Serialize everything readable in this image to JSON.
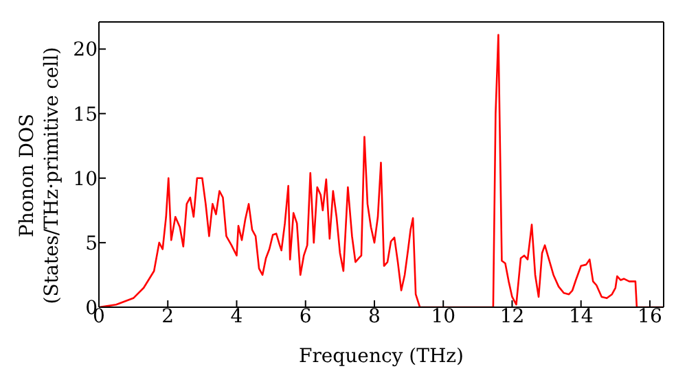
{
  "chart_data": {
    "type": "line",
    "xlabel": "Frequency (THz)",
    "ylabel": "Phonon DOS\n(States/THz·primitive cell)",
    "xlim": [
      0,
      16.4
    ],
    "ylim": [
      0,
      22.1
    ],
    "xticks": [
      0,
      2,
      4,
      6,
      8,
      10,
      12,
      14,
      16
    ],
    "yticks": [
      0,
      5,
      10,
      15,
      20
    ],
    "marker": "none",
    "line_style": "solid",
    "x": [
      0,
      0.5,
      1.0,
      1.3,
      1.6,
      1.75,
      1.85,
      1.95,
      2.02,
      2.1,
      2.22,
      2.35,
      2.45,
      2.55,
      2.65,
      2.75,
      2.85,
      3.0,
      3.1,
      3.2,
      3.3,
      3.4,
      3.5,
      3.6,
      3.7,
      3.85,
      4.0,
      4.05,
      4.15,
      4.25,
      4.35,
      4.45,
      4.55,
      4.65,
      4.75,
      4.85,
      4.95,
      5.05,
      5.15,
      5.25,
      5.3,
      5.4,
      5.5,
      5.55,
      5.65,
      5.75,
      5.85,
      5.95,
      6.05,
      6.14,
      6.24,
      6.34,
      6.44,
      6.5,
      6.6,
      6.7,
      6.8,
      6.9,
      7.0,
      7.1,
      7.23,
      7.35,
      7.45,
      7.55,
      7.62,
      7.71,
      7.8,
      7.9,
      8.0,
      8.1,
      8.19,
      8.28,
      8.38,
      8.48,
      8.58,
      8.68,
      8.78,
      8.88,
      8.98,
      9.05,
      9.12,
      9.2,
      9.32,
      11.45,
      11.52,
      11.6,
      11.7,
      11.8,
      11.9,
      12.0,
      12.12,
      12.25,
      12.35,
      12.45,
      12.57,
      12.67,
      12.77,
      12.87,
      12.95,
      13.2,
      13.35,
      13.5,
      13.65,
      13.75,
      13.85,
      14.0,
      14.15,
      14.25,
      14.35,
      14.45,
      14.6,
      14.75,
      14.9,
      15.0,
      15.05,
      15.15,
      15.25,
      15.4,
      15.58,
      15.62,
      16.4
    ],
    "series": [
      {
        "color": "#ff0000",
        "values": [
          0,
          0.2,
          0.7,
          1.5,
          2.8,
          5.0,
          4.5,
          7,
          10,
          5.2,
          7,
          6.2,
          4.7,
          8,
          8.5,
          7,
          10,
          10,
          8,
          5.5,
          8,
          7.2,
          9,
          8.5,
          5.5,
          4.8,
          4,
          6.3,
          5.2,
          6.8,
          8,
          6,
          5.5,
          3,
          2.5,
          3.8,
          4.5,
          5.6,
          5.7,
          4.8,
          4.4,
          6.5,
          9.4,
          3.7,
          7.3,
          6.5,
          2.5,
          4,
          4.8,
          10.4,
          5,
          9.3,
          8.7,
          7.5,
          9.9,
          5.3,
          9,
          7,
          4.2,
          2.8,
          9.3,
          5.5,
          3.5,
          3.8,
          4.0,
          13.2,
          8,
          6.2,
          5,
          7,
          11.2,
          3.2,
          3.5,
          5.1,
          5.4,
          3.5,
          1.3,
          2.5,
          4.5,
          6,
          6.9,
          1.0,
          0,
          0,
          15,
          21.1,
          3.6,
          3.4,
          2,
          0.8,
          0.2,
          3.8,
          4,
          3.7,
          6.4,
          2.5,
          0.8,
          4.2,
          4.8,
          2.5,
          1.6,
          1.1,
          1.0,
          1.3,
          2.1,
          3.2,
          3.3,
          3.7,
          2.0,
          1.7,
          0.8,
          0.7,
          1.0,
          1.5,
          2.4,
          2.1,
          2.2,
          2.0,
          2.0,
          0,
          0
        ]
      }
    ]
  }
}
